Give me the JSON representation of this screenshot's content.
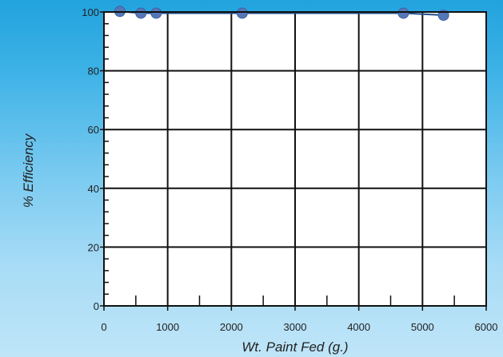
{
  "chart_data": {
    "type": "line",
    "title": "",
    "xlabel": "Wt. Paint Fed (g.)",
    "ylabel": "% Efficiency",
    "xlim": [
      0,
      6000
    ],
    "ylim": [
      0,
      100
    ],
    "xticks": [
      0,
      1000,
      2000,
      3000,
      4000,
      5000,
      6000
    ],
    "yticks": [
      0,
      20,
      40,
      60,
      80,
      100
    ],
    "x_tick_labels": [
      "0",
      "1000",
      "2000",
      "3000",
      "4000",
      "5000",
      "6000"
    ],
    "y_tick_labels": [
      "0",
      "20",
      "40",
      "60",
      "80",
      "100"
    ],
    "grid": true,
    "series": [
      {
        "x": [
          250,
          580,
          820,
          2170,
          4700,
          5330
        ],
        "y": [
          100.2,
          99.6,
          99.6,
          99.6,
          99.6,
          98.9
        ]
      }
    ],
    "colors": {
      "line": "#1d4f8a",
      "marker": "#5577b8",
      "grid": "#111111",
      "plot_background": "#ffffff"
    }
  }
}
